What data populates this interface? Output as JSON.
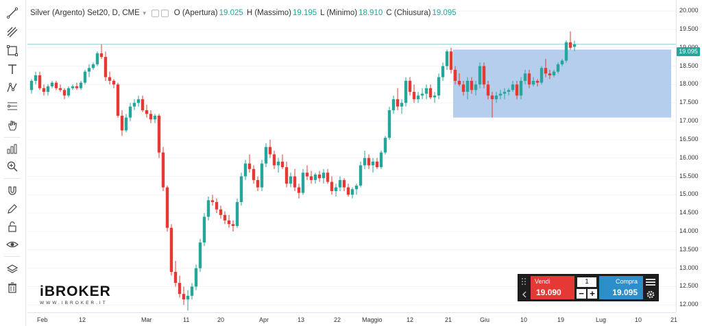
{
  "legend": {
    "title": "Silver (Argento) Set20, D, CME",
    "open_label": "O (Apertura)",
    "open_value": "19.025",
    "high_label": "H (Massimo)",
    "high_value": "19.195",
    "low_label": "L (Minimo)",
    "low_value": "18.910",
    "close_label": "C (Chiusura)",
    "close_value": "19.095"
  },
  "price_axis": {
    "labels": [
      "20.000",
      "19.500",
      "19.000",
      "18.500",
      "18.000",
      "17.500",
      "17.000",
      "16.500",
      "16.000",
      "15.500",
      "15.000",
      "14.500",
      "14.000",
      "13.500",
      "13.000",
      "12.500",
      "12.000"
    ],
    "last_price": "19.095"
  },
  "time_axis": {
    "labels": [
      "Feb",
      "12",
      "Mar",
      "11",
      "20",
      "Apr",
      "13",
      "22",
      "Maggio",
      "12",
      "21",
      "Giu",
      "10",
      "19",
      "Lug",
      "10",
      "21"
    ]
  },
  "logo": {
    "brand": "iBROKER",
    "site": "WWW.IBROKER.IT"
  },
  "trade_panel": {
    "sell_label": "Vendi",
    "sell_price": "19.090",
    "buy_label": "Compra",
    "buy_price": "19.095",
    "quantity": "1",
    "minus": "−",
    "plus": "+"
  },
  "colors": {
    "up": "#26a69a",
    "down": "#e53935",
    "zone": "#a8c6ea",
    "sell": "#e53935",
    "buy": "#2d8ec9"
  },
  "chart_data": {
    "type": "candlestick",
    "ylim": [
      11.8,
      20.3
    ],
    "zone": {
      "from_candle": 103,
      "to_candle": 155,
      "low": 17.1,
      "high": 18.95
    },
    "candles": [
      [
        17.85,
        18.15,
        17.75,
        18.1
      ],
      [
        18.1,
        18.35,
        18.0,
        18.25
      ],
      [
        18.25,
        18.35,
        17.85,
        17.9
      ],
      [
        17.9,
        18.0,
        17.7,
        17.8
      ],
      [
        17.8,
        18.0,
        17.7,
        17.95
      ],
      [
        17.95,
        18.1,
        17.9,
        18.05
      ],
      [
        18.05,
        18.1,
        17.85,
        17.9
      ],
      [
        17.9,
        18.0,
        17.8,
        17.85
      ],
      [
        17.85,
        17.9,
        17.6,
        17.7
      ],
      [
        17.7,
        17.95,
        17.65,
        17.9
      ],
      [
        17.9,
        18.0,
        17.85,
        17.95
      ],
      [
        17.95,
        18.05,
        17.85,
        17.9
      ],
      [
        17.9,
        18.1,
        17.85,
        18.05
      ],
      [
        18.05,
        18.4,
        18.0,
        18.35
      ],
      [
        18.35,
        18.55,
        18.2,
        18.45
      ],
      [
        18.45,
        18.6,
        18.4,
        18.55
      ],
      [
        18.55,
        18.9,
        18.5,
        18.85
      ],
      [
        18.85,
        19.1,
        18.7,
        18.75
      ],
      [
        18.75,
        18.9,
        18.1,
        18.2
      ],
      [
        18.2,
        18.35,
        18.0,
        18.1
      ],
      [
        18.1,
        18.15,
        17.9,
        18.0
      ],
      [
        18.0,
        18.05,
        17.1,
        17.15
      ],
      [
        17.15,
        17.3,
        16.6,
        16.75
      ],
      [
        16.75,
        17.2,
        16.7,
        17.1
      ],
      [
        17.1,
        17.5,
        17.0,
        17.4
      ],
      [
        17.4,
        17.6,
        17.3,
        17.5
      ],
      [
        17.5,
        17.7,
        17.4,
        17.6
      ],
      [
        17.6,
        17.7,
        17.25,
        17.3
      ],
      [
        17.3,
        17.45,
        17.1,
        17.2
      ],
      [
        17.2,
        17.3,
        16.95,
        17.05
      ],
      [
        17.05,
        17.2,
        16.95,
        17.15
      ],
      [
        17.15,
        17.2,
        16.0,
        16.15
      ],
      [
        16.15,
        16.3,
        15.1,
        15.2
      ],
      [
        15.2,
        15.25,
        14.0,
        14.1
      ],
      [
        14.1,
        14.2,
        12.8,
        12.9
      ],
      [
        12.9,
        13.2,
        12.5,
        12.6
      ],
      [
        12.6,
        12.8,
        12.2,
        12.3
      ],
      [
        12.3,
        12.5,
        12.0,
        12.15
      ],
      [
        12.15,
        12.4,
        11.85,
        12.25
      ],
      [
        12.25,
        12.6,
        12.15,
        12.5
      ],
      [
        12.5,
        13.1,
        12.4,
        13.0
      ],
      [
        13.0,
        13.8,
        12.9,
        13.7
      ],
      [
        13.7,
        14.5,
        13.6,
        14.4
      ],
      [
        14.4,
        14.95,
        14.3,
        14.85
      ],
      [
        14.85,
        15.0,
        14.7,
        14.8
      ],
      [
        14.8,
        14.9,
        14.5,
        14.6
      ],
      [
        14.6,
        14.7,
        14.35,
        14.45
      ],
      [
        14.45,
        14.55,
        14.2,
        14.3
      ],
      [
        14.3,
        14.45,
        14.1,
        14.2
      ],
      [
        14.2,
        14.3,
        14.0,
        14.15
      ],
      [
        14.15,
        14.9,
        14.1,
        14.8
      ],
      [
        14.8,
        15.6,
        14.7,
        15.5
      ],
      [
        15.5,
        15.95,
        15.4,
        15.85
      ],
      [
        15.85,
        16.1,
        15.6,
        15.7
      ],
      [
        15.7,
        15.8,
        15.3,
        15.4
      ],
      [
        15.4,
        15.5,
        15.1,
        15.2
      ],
      [
        15.2,
        15.95,
        15.1,
        15.85
      ],
      [
        15.85,
        16.4,
        15.75,
        16.3
      ],
      [
        16.3,
        16.5,
        16.0,
        16.1
      ],
      [
        16.1,
        16.2,
        15.7,
        15.8
      ],
      [
        15.8,
        16.0,
        15.6,
        15.9
      ],
      [
        15.9,
        16.1,
        15.7,
        15.75
      ],
      [
        15.75,
        15.9,
        15.2,
        15.3
      ],
      [
        15.3,
        15.6,
        15.2,
        15.5
      ],
      [
        15.5,
        15.7,
        15.1,
        15.2
      ],
      [
        15.2,
        15.3,
        14.9,
        15.05
      ],
      [
        15.05,
        15.7,
        15.0,
        15.6
      ],
      [
        15.6,
        15.8,
        15.4,
        15.5
      ],
      [
        15.5,
        15.65,
        15.3,
        15.4
      ],
      [
        15.4,
        15.6,
        15.3,
        15.55
      ],
      [
        15.55,
        15.65,
        15.35,
        15.45
      ],
      [
        15.45,
        15.7,
        15.3,
        15.6
      ],
      [
        15.6,
        15.7,
        15.3,
        15.35
      ],
      [
        15.35,
        15.5,
        15.0,
        15.1
      ],
      [
        15.1,
        15.3,
        14.95,
        15.2
      ],
      [
        15.2,
        15.5,
        15.1,
        15.4
      ],
      [
        15.4,
        15.45,
        15.1,
        15.2
      ],
      [
        15.2,
        15.3,
        14.95,
        15.0
      ],
      [
        15.0,
        15.2,
        14.9,
        15.15
      ],
      [
        15.15,
        15.3,
        15.0,
        15.25
      ],
      [
        15.25,
        15.9,
        15.2,
        15.8
      ],
      [
        15.8,
        16.2,
        15.7,
        16.0
      ],
      [
        16.0,
        16.1,
        15.7,
        15.8
      ],
      [
        15.8,
        16.0,
        15.6,
        15.9
      ],
      [
        15.9,
        16.0,
        15.7,
        15.75
      ],
      [
        15.75,
        16.2,
        15.7,
        16.15
      ],
      [
        16.15,
        16.6,
        16.1,
        16.55
      ],
      [
        16.55,
        17.4,
        16.5,
        17.3
      ],
      [
        17.3,
        17.7,
        17.2,
        17.6
      ],
      [
        17.6,
        17.9,
        17.3,
        17.4
      ],
      [
        17.4,
        17.6,
        17.2,
        17.5
      ],
      [
        17.5,
        18.2,
        17.4,
        18.1
      ],
      [
        18.1,
        18.2,
        17.7,
        17.8
      ],
      [
        17.8,
        18.0,
        17.5,
        17.6
      ],
      [
        17.6,
        17.8,
        17.5,
        17.7
      ],
      [
        17.7,
        17.9,
        17.6,
        17.75
      ],
      [
        17.75,
        18.0,
        17.6,
        17.9
      ],
      [
        17.9,
        18.0,
        17.6,
        17.65
      ],
      [
        17.65,
        17.8,
        17.5,
        17.7
      ],
      [
        17.7,
        18.3,
        17.6,
        18.2
      ],
      [
        18.2,
        18.6,
        18.1,
        18.5
      ],
      [
        18.5,
        18.95,
        18.4,
        18.9
      ],
      [
        18.9,
        19.0,
        18.3,
        18.4
      ],
      [
        18.4,
        18.5,
        18.0,
        18.1
      ],
      [
        18.1,
        18.3,
        17.95,
        18.0
      ],
      [
        18.0,
        18.1,
        17.7,
        17.8
      ],
      [
        17.8,
        18.2,
        17.6,
        18.1
      ],
      [
        18.1,
        18.2,
        17.75,
        17.85
      ],
      [
        17.85,
        18.1,
        17.7,
        18.0
      ],
      [
        18.0,
        18.6,
        17.9,
        18.5
      ],
      [
        18.5,
        18.6,
        17.9,
        18.0
      ],
      [
        18.0,
        18.1,
        17.6,
        17.7
      ],
      [
        17.7,
        17.8,
        17.1,
        17.6
      ],
      [
        17.6,
        17.8,
        17.5,
        17.7
      ],
      [
        17.7,
        17.85,
        17.6,
        17.75
      ],
      [
        17.75,
        17.9,
        17.6,
        17.8
      ],
      [
        17.8,
        17.9,
        17.7,
        17.85
      ],
      [
        17.85,
        18.1,
        17.8,
        18.0
      ],
      [
        18.0,
        18.1,
        17.6,
        17.7
      ],
      [
        17.7,
        18.2,
        17.6,
        18.1
      ],
      [
        18.1,
        18.4,
        18.0,
        18.3
      ],
      [
        18.3,
        18.4,
        17.9,
        18.0
      ],
      [
        18.0,
        18.2,
        17.95,
        18.1
      ],
      [
        18.1,
        18.15,
        17.95,
        18.05
      ],
      [
        18.05,
        18.5,
        18.0,
        18.45
      ],
      [
        18.45,
        18.7,
        18.2,
        18.3
      ],
      [
        18.3,
        18.4,
        18.15,
        18.25
      ],
      [
        18.25,
        18.4,
        18.2,
        18.35
      ],
      [
        18.35,
        18.6,
        18.3,
        18.55
      ],
      [
        18.55,
        18.7,
        18.5,
        18.65
      ],
      [
        18.65,
        19.2,
        18.6,
        19.15
      ],
      [
        19.15,
        19.45,
        18.95,
        19.0
      ],
      [
        19.025,
        19.195,
        18.91,
        19.095
      ]
    ]
  }
}
